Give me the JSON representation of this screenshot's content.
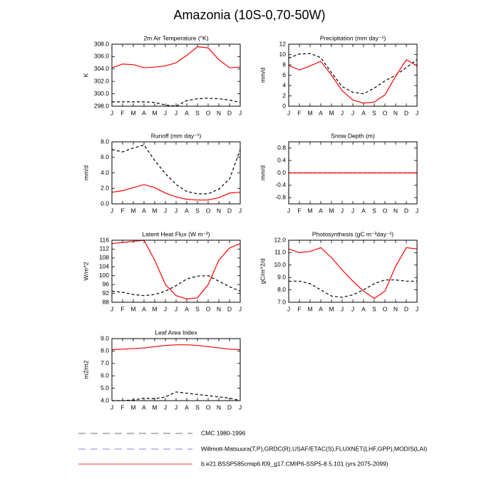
{
  "title": "Amazonia (10S-0,70-50W)",
  "chart_data": [
    {
      "type": "line",
      "title": "2m Air Temperature (°K)",
      "ylabel": "K",
      "categories": [
        "J",
        "F",
        "M",
        "A",
        "M",
        "J",
        "J",
        "A",
        "S",
        "O",
        "N",
        "D",
        "J"
      ],
      "ylim": [
        298,
        308
      ],
      "yticks": [
        {
          "value": 298,
          "label": "298.0"
        },
        {
          "value": 300,
          "label": "300.0"
        },
        {
          "value": 302,
          "label": "302.0"
        },
        {
          "value": 304,
          "label": "304.0"
        },
        {
          "value": 306,
          "label": "306.0"
        },
        {
          "value": 308,
          "label": "308.0"
        }
      ],
      "series": [
        {
          "color": "#000000",
          "dashed": true,
          "values": [
            298.7,
            298.7,
            298.7,
            298.7,
            298.6,
            298.2,
            298.0,
            298.9,
            299.2,
            299.3,
            299.2,
            299.0,
            298.6
          ]
        },
        {
          "color": "#ff0000",
          "dashed": false,
          "values": [
            304.2,
            304.8,
            304.7,
            304.2,
            304.3,
            304.5,
            305.0,
            306.2,
            307.6,
            307.4,
            305.5,
            304.2,
            304.3
          ]
        }
      ]
    },
    {
      "type": "line",
      "title": "Precipitation (mm day⁻¹)",
      "ylabel": "mm/d",
      "categories": [
        "J",
        "F",
        "M",
        "A",
        "M",
        "J",
        "J",
        "A",
        "S",
        "O",
        "N",
        "D",
        "J"
      ],
      "ylim": [
        0,
        12
      ],
      "yticks": [
        0,
        2,
        4,
        6,
        8,
        10,
        12
      ],
      "series": [
        {
          "color": "#000000",
          "dashed": true,
          "values": [
            9.3,
            10.1,
            10.2,
            9.4,
            6.5,
            3.8,
            2.7,
            2.4,
            3.5,
            4.9,
            6.0,
            7.5,
            9.0
          ]
        },
        {
          "color": "#ff0000",
          "dashed": false,
          "values": [
            7.9,
            7.0,
            7.8,
            8.7,
            6.0,
            3.0,
            1.2,
            0.6,
            0.8,
            2.2,
            5.8,
            9.0,
            7.8
          ]
        }
      ]
    },
    {
      "type": "line",
      "title": "Runoff (mm day⁻¹)",
      "ylabel": "mm/d",
      "categories": [
        "J",
        "F",
        "M",
        "A",
        "M",
        "J",
        "J",
        "A",
        "S",
        "O",
        "N",
        "D",
        "J"
      ],
      "ylim": [
        0,
        8
      ],
      "yticks": [
        {
          "value": 0,
          "label": "0.0"
        },
        {
          "value": 2,
          "label": "2.0"
        },
        {
          "value": 4,
          "label": "4.0"
        },
        {
          "value": 6,
          "label": "6.0"
        },
        {
          "value": 8,
          "label": "8.0"
        }
      ],
      "series": [
        {
          "color": "#000000",
          "dashed": true,
          "values": [
            7.0,
            6.7,
            7.2,
            7.6,
            5.6,
            3.9,
            2.5,
            1.6,
            1.3,
            1.3,
            1.9,
            3.2,
            7.0
          ]
        },
        {
          "color": "#ff0000",
          "dashed": false,
          "values": [
            1.5,
            1.7,
            2.1,
            2.5,
            2.1,
            1.4,
            0.9,
            0.6,
            0.5,
            0.5,
            0.8,
            1.4,
            1.5
          ]
        }
      ]
    },
    {
      "type": "line",
      "title": "Snow Depth (m)",
      "ylabel": "mm/d",
      "categories": [
        "J",
        "F",
        "M",
        "A",
        "M",
        "J",
        "J",
        "A",
        "S",
        "O",
        "N",
        "D",
        "J"
      ],
      "ylim": [
        -1,
        1
      ],
      "yticks": [
        {
          "value": -0.8,
          "label": "-0.8"
        },
        {
          "value": -0.4,
          "label": "-0.4"
        },
        {
          "value": 0,
          "label": "0.0"
        },
        {
          "value": 0.4,
          "label": "0.4"
        },
        {
          "value": 0.8,
          "label": "0.8"
        }
      ],
      "series": [
        {
          "color": "#000000",
          "dashed": true,
          "values": [
            0,
            0,
            0,
            0,
            0,
            0,
            0,
            0,
            0,
            0,
            0,
            0,
            0
          ]
        },
        {
          "color": "#ff0000",
          "dashed": false,
          "values": [
            0,
            0,
            0,
            0,
            0,
            0,
            0,
            0,
            0,
            0,
            0,
            0,
            0
          ]
        }
      ]
    },
    {
      "type": "line",
      "title": "Latent Heat Flux (W m⁻²)",
      "ylabel": "W/m^2",
      "categories": [
        "J",
        "F",
        "M",
        "A",
        "M",
        "J",
        "J",
        "A",
        "S",
        "O",
        "N",
        "D",
        "J"
      ],
      "ylim": [
        88,
        116
      ],
      "yticks": [
        88,
        92,
        96,
        100,
        104,
        108,
        112,
        116
      ],
      "series": [
        {
          "color": "#000000",
          "dashed": true,
          "values": [
            93,
            92.5,
            91.5,
            91,
            91.5,
            93,
            95.5,
            98.5,
            99.8,
            100,
            97.5,
            95,
            93
          ]
        },
        {
          "color": "#ff0000",
          "dashed": false,
          "values": [
            114.5,
            115,
            115.5,
            116,
            107,
            96,
            91,
            89.5,
            90,
            96,
            107,
            112.5,
            114.5
          ]
        }
      ]
    },
    {
      "type": "line",
      "title": "Photosynthesis (gC m⁻²day⁻¹)",
      "ylabel": "gC/m^2/d",
      "categories": [
        "J",
        "F",
        "M",
        "A",
        "M",
        "J",
        "J",
        "A",
        "S",
        "O",
        "N",
        "D",
        "J"
      ],
      "ylim": [
        7,
        12
      ],
      "yticks": [
        {
          "value": 7,
          "label": "7.0"
        },
        {
          "value": 8,
          "label": "8.0"
        },
        {
          "value": 9,
          "label": "9.0"
        },
        {
          "value": 10,
          "label": "10.0"
        },
        {
          "value": 11,
          "label": "11.0"
        },
        {
          "value": 12,
          "label": "12.0"
        }
      ],
      "series": [
        {
          "color": "#000000",
          "dashed": true,
          "values": [
            8.7,
            8.7,
            8.5,
            8.0,
            7.5,
            7.4,
            7.6,
            8.0,
            8.5,
            8.8,
            8.8,
            8.7,
            8.7
          ]
        },
        {
          "color": "#ff0000",
          "dashed": false,
          "values": [
            11.3,
            11.0,
            11.1,
            11.4,
            10.6,
            9.6,
            8.7,
            7.9,
            7.3,
            7.9,
            9.9,
            11.4,
            11.3
          ]
        }
      ]
    },
    {
      "type": "line",
      "title": "Leaf Area Index",
      "ylabel": "m2/m2",
      "categories": [
        "J",
        "F",
        "M",
        "A",
        "M",
        "J",
        "J",
        "A",
        "S",
        "O",
        "N",
        "D",
        "J"
      ],
      "ylim": [
        4,
        9
      ],
      "yticks": [
        {
          "value": 4,
          "label": "4.0"
        },
        {
          "value": 5,
          "label": "5.0"
        },
        {
          "value": 6,
          "label": "6.0"
        },
        {
          "value": 7,
          "label": "7.0"
        },
        {
          "value": 8,
          "label": "8.0"
        },
        {
          "value": 9,
          "label": "9.0"
        }
      ],
      "series": [
        {
          "color": "#000000",
          "dashed": true,
          "values": [
            4.0,
            4.0,
            4.05,
            4.2,
            4.15,
            4.3,
            4.7,
            4.6,
            4.5,
            4.4,
            4.3,
            4.2,
            4.0
          ]
        },
        {
          "color": "#ff0000",
          "dashed": false,
          "values": [
            8.1,
            8.15,
            8.2,
            8.25,
            8.35,
            8.45,
            8.5,
            8.5,
            8.45,
            8.35,
            8.25,
            8.15,
            8.1
          ]
        }
      ]
    }
  ],
  "legend": [
    {
      "label": "CMC 1980-1996",
      "color": "#8c8c8c",
      "dashed": true
    },
    {
      "label": "Willmott-Matsuura(T,P),GRDC(R),USAF/ETAC(S),FLUXNET(LHF,GPP),MODIS(LAI)",
      "color": "#9c9ce6",
      "dashed": true
    },
    {
      "label": "b.e21.BSSP585cmip6.f09_g17.CMIP6-SSP5-8.5.101 (yrs 2075-2099)",
      "color": "#ff5a5a",
      "dashed": false
    }
  ]
}
